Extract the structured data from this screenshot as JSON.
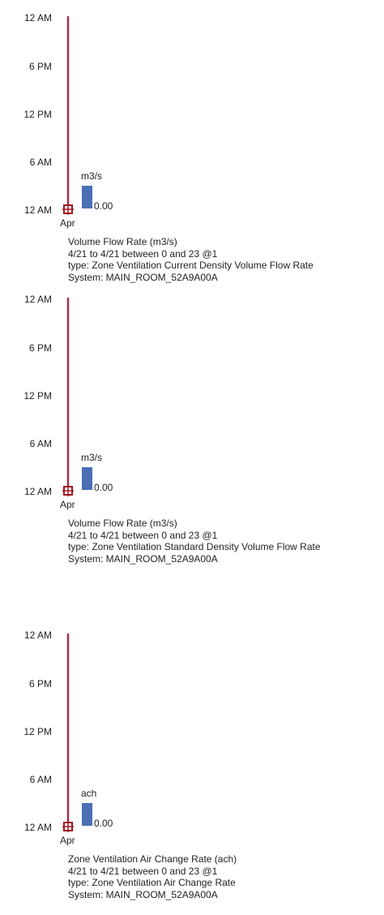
{
  "chart_data": [
    {
      "type": "bar",
      "y_ticks": [
        "12 AM",
        "6 PM",
        "12 PM",
        "6 AM",
        "12 AM"
      ],
      "x_tick": "Apr",
      "unit": "m3/s",
      "value_label": "0.00",
      "values": [
        0.0
      ],
      "series_color": "#4a6fb5",
      "axis_color": "#a03048",
      "marker_color": "#a01820",
      "caption": [
        "Volume Flow Rate (m3/s)",
        "4/21 to 4/21 between 0 and 23 @1",
        "type: Zone Ventilation Current Density Volume Flow Rate",
        "System: MAIN_ROOM_52A9A00A"
      ]
    },
    {
      "type": "bar",
      "y_ticks": [
        "12 AM",
        "6 PM",
        "12 PM",
        "6 AM",
        "12 AM"
      ],
      "x_tick": "Apr",
      "unit": "m3/s",
      "value_label": "0.00",
      "values": [
        0.0
      ],
      "series_color": "#4a6fb5",
      "axis_color": "#a03048",
      "marker_color": "#a01820",
      "caption": [
        "Volume Flow Rate (m3/s)",
        "4/21 to 4/21 between 0 and 23 @1",
        "type: Zone Ventilation Standard Density Volume Flow Rate",
        "System: MAIN_ROOM_52A9A00A"
      ]
    },
    {
      "type": "bar",
      "y_ticks": [
        "12 AM",
        "6 PM",
        "12 PM",
        "6 AM",
        "12 AM"
      ],
      "x_tick": "Apr",
      "unit": "ach",
      "value_label": "0.00",
      "values": [
        0.0
      ],
      "series_color": "#4a6fb5",
      "axis_color": "#a03048",
      "marker_color": "#a01820",
      "caption": [
        "Zone Ventilation Air Change Rate (ach)",
        "4/21 to 4/21 between 0 and 23 @1",
        "type: Zone Ventilation Air Change Rate",
        "System: MAIN_ROOM_52A9A00A"
      ]
    }
  ]
}
